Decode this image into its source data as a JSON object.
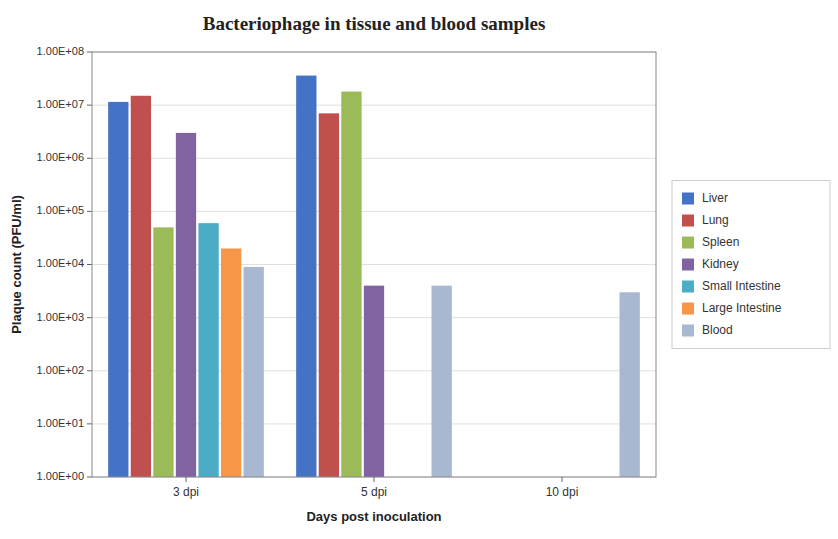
{
  "chart_data": {
    "type": "bar",
    "title": "Bacteriophage in tissue and blood samples",
    "x_label": "Days post inoculation",
    "y_label": "Plaque count (PFU/ml)",
    "categories": [
      "3 dpi",
      "5 dpi",
      "10 dpi"
    ],
    "series": [
      {
        "name": "Liver",
        "color": "#4472C4",
        "values": [
          11500000.0,
          36000000.0,
          null
        ]
      },
      {
        "name": "Lung",
        "color": "#C0504D",
        "values": [
          15000000.0,
          7000000.0,
          null
        ]
      },
      {
        "name": "Spleen",
        "color": "#9BBB59",
        "values": [
          50000.0,
          18000000.0,
          null
        ]
      },
      {
        "name": "Kidney",
        "color": "#8064A2",
        "values": [
          3000000.0,
          4000.0,
          null
        ]
      },
      {
        "name": "Small Intestine",
        "color": "#4BACC6",
        "values": [
          60000.0,
          null,
          null
        ]
      },
      {
        "name": "Large Intestine",
        "color": "#F79646",
        "values": [
          20000.0,
          null,
          null
        ]
      },
      {
        "name": "Blood",
        "color": "#A8B8D0",
        "values": [
          9000.0,
          4000.0,
          3000.0
        ]
      }
    ],
    "log": "y",
    "ylim": [
      1,
      100000000
    ],
    "yticks": [
      {
        "value": 1,
        "label": "1.00E+00"
      },
      {
        "value": 10,
        "label": "1.00E+01"
      },
      {
        "value": 100,
        "label": "1.00E+02"
      },
      {
        "value": 1000,
        "label": "1.00E+03"
      },
      {
        "value": 10000,
        "label": "1.00E+04"
      },
      {
        "value": 100000,
        "label": "1.00E+05"
      },
      {
        "value": 1000000,
        "label": "1.00E+06"
      },
      {
        "value": 10000000,
        "label": "1.00E+07"
      },
      {
        "value": 100000000,
        "label": "1.00E+08"
      }
    ],
    "grid": true,
    "legend": "right"
  }
}
